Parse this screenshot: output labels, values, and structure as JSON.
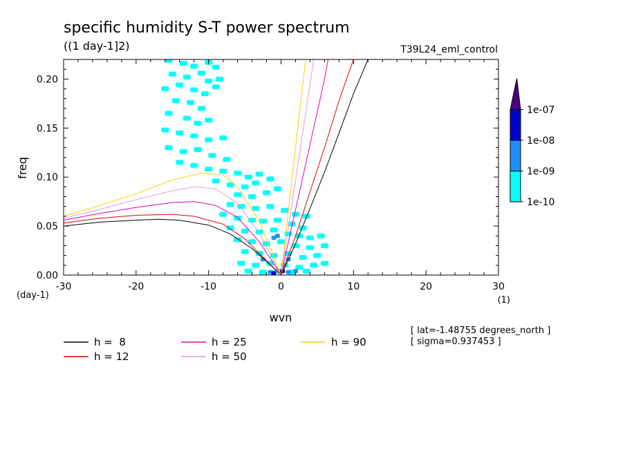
{
  "chart_data": {
    "type": "heatmap",
    "title": "specific humidity S-T power spectrum",
    "subtitle": "((1 day-1]2)",
    "experiment": "T39L24_eml_control",
    "xlabel": "wvn",
    "ylabel": "freq",
    "x_unit_label": "(1)",
    "y_unit_label": "(day-1)",
    "xlim": [
      -30,
      30
    ],
    "ylim": [
      0,
      0.22
    ],
    "xticks": [
      -30,
      -20,
      -10,
      0,
      10,
      20,
      30
    ],
    "xtick_labels": [
      "-30",
      "-20",
      "-10",
      "0",
      "10",
      "20",
      "30"
    ],
    "yticks": [
      0,
      0.05,
      0.1,
      0.15,
      0.2
    ],
    "ytick_labels": [
      "0.00",
      "0.05",
      "0.10",
      "0.15",
      "0.20"
    ],
    "colorbar": {
      "levels": [
        "1e-10",
        "1e-09",
        "1e-08",
        "1e-07"
      ],
      "colors": [
        "#00ffff",
        "#1e90ff",
        "#0000cd",
        "#4b0082"
      ],
      "extend": "max"
    },
    "info_lines": [
      "[ lat=-1.48755 degrees_north ]",
      "[ sigma=0.937453 ]"
    ],
    "series": [
      {
        "name": "h =  8",
        "color": "#000000",
        "westward": [
          [
            -30,
            0.05
          ],
          [
            -25,
            0.054
          ],
          [
            -20,
            0.056
          ],
          [
            -17,
            0.057
          ],
          [
            -14,
            0.056
          ],
          [
            -10,
            0.051
          ],
          [
            -7,
            0.042
          ],
          [
            -4,
            0.027
          ],
          [
            -2,
            0.014
          ],
          [
            0,
            0
          ]
        ],
        "eastward": [
          [
            0,
            0
          ],
          [
            2,
            0.032
          ],
          [
            4,
            0.068
          ],
          [
            6,
            0.105
          ],
          [
            8,
            0.145
          ],
          [
            10,
            0.185
          ],
          [
            12,
            0.22
          ]
        ]
      },
      {
        "name": "h = 12",
        "color": "#dd0000",
        "westward": [
          [
            -30,
            0.053
          ],
          [
            -25,
            0.058
          ],
          [
            -20,
            0.061
          ],
          [
            -15,
            0.062
          ],
          [
            -12,
            0.06
          ],
          [
            -8,
            0.052
          ],
          [
            -5,
            0.037
          ],
          [
            -3,
            0.022
          ],
          [
            0,
            0
          ]
        ],
        "eastward": [
          [
            0,
            0
          ],
          [
            2,
            0.04
          ],
          [
            4,
            0.085
          ],
          [
            6,
            0.13
          ],
          [
            8,
            0.178
          ],
          [
            10,
            0.22
          ]
        ]
      },
      {
        "name": "h = 25",
        "color": "#dd00aa",
        "westward": [
          [
            -30,
            0.056
          ],
          [
            -25,
            0.063
          ],
          [
            -20,
            0.069
          ],
          [
            -15,
            0.074
          ],
          [
            -12,
            0.075
          ],
          [
            -9,
            0.071
          ],
          [
            -6,
            0.059
          ],
          [
            -3,
            0.034
          ],
          [
            0,
            0
          ]
        ],
        "eastward": [
          [
            0,
            0
          ],
          [
            1.5,
            0.05
          ],
          [
            3,
            0.1
          ],
          [
            4.5,
            0.15
          ],
          [
            6,
            0.2
          ],
          [
            6.5,
            0.22
          ]
        ]
      },
      {
        "name": "h = 50",
        "color": "#dd99dd",
        "westward": [
          [
            -30,
            0.058
          ],
          [
            -25,
            0.067
          ],
          [
            -20,
            0.077
          ],
          [
            -15,
            0.086
          ],
          [
            -12,
            0.09
          ],
          [
            -9,
            0.088
          ],
          [
            -6,
            0.073
          ],
          [
            -3,
            0.043
          ],
          [
            0,
            0
          ]
        ],
        "eastward": [
          [
            0,
            0
          ],
          [
            1,
            0.048
          ],
          [
            2,
            0.097
          ],
          [
            3,
            0.146
          ],
          [
            4,
            0.195
          ],
          [
            4.5,
            0.22
          ]
        ]
      },
      {
        "name": "h = 90",
        "color": "#ffcc00",
        "westward": [
          [
            -30,
            0.06
          ],
          [
            -25,
            0.071
          ],
          [
            -20,
            0.083
          ],
          [
            -15,
            0.097
          ],
          [
            -11,
            0.104
          ],
          [
            -8,
            0.102
          ],
          [
            -6,
            0.09
          ],
          [
            -3,
            0.055
          ],
          [
            0,
            0
          ]
        ],
        "eastward": [
          [
            0,
            0
          ],
          [
            1,
            0.065
          ],
          [
            2,
            0.13
          ],
          [
            3,
            0.195
          ],
          [
            3.4,
            0.22
          ]
        ]
      }
    ],
    "cells": [
      [
        -15.5,
        0.219,
        1
      ],
      [
        -13.5,
        0.216,
        1
      ],
      [
        -12,
        0.213,
        1
      ],
      [
        -10,
        0.217,
        1
      ],
      [
        -9,
        0.212,
        1
      ],
      [
        -15,
        0.205,
        1
      ],
      [
        -13,
        0.202,
        1
      ],
      [
        -11,
        0.206,
        1
      ],
      [
        -10,
        0.198,
        1
      ],
      [
        -8.5,
        0.2,
        1
      ],
      [
        -16,
        0.19,
        1
      ],
      [
        -14,
        0.194,
        1
      ],
      [
        -12,
        0.189,
        1
      ],
      [
        -10.5,
        0.185,
        1
      ],
      [
        -9,
        0.192,
        1
      ],
      [
        -14.5,
        0.178,
        1
      ],
      [
        -12.5,
        0.176,
        1
      ],
      [
        -11,
        0.17,
        1
      ],
      [
        -15.5,
        0.165,
        1
      ],
      [
        -13,
        0.16,
        1
      ],
      [
        -11.5,
        0.155,
        1
      ],
      [
        -10,
        0.158,
        1
      ],
      [
        -16,
        0.148,
        1
      ],
      [
        -14,
        0.145,
        1
      ],
      [
        -12,
        0.142,
        1
      ],
      [
        -10,
        0.138,
        1
      ],
      [
        -8,
        0.14,
        1
      ],
      [
        -15.5,
        0.13,
        1
      ],
      [
        -13.5,
        0.126,
        1
      ],
      [
        -11.5,
        0.128,
        1
      ],
      [
        -9.5,
        0.122,
        1
      ],
      [
        -7.5,
        0.118,
        1
      ],
      [
        -14,
        0.115,
        1
      ],
      [
        -12,
        0.112,
        1
      ],
      [
        -10,
        0.108,
        1
      ],
      [
        -8,
        0.106,
        1
      ],
      [
        -6,
        0.104,
        1
      ],
      [
        -4.5,
        0.1,
        1
      ],
      [
        -3,
        0.103,
        1
      ],
      [
        -9,
        0.096,
        1
      ],
      [
        -7,
        0.092,
        1
      ],
      [
        -5,
        0.09,
        1
      ],
      [
        -3.5,
        0.094,
        1
      ],
      [
        -1.5,
        0.098,
        1
      ],
      [
        -6,
        0.082,
        1
      ],
      [
        -4,
        0.08,
        1
      ],
      [
        -2,
        0.084,
        1
      ],
      [
        -0.5,
        0.088,
        1
      ],
      [
        -7,
        0.072,
        1
      ],
      [
        -5.5,
        0.07,
        1
      ],
      [
        -3.5,
        0.068,
        1
      ],
      [
        -1.5,
        0.07,
        1
      ],
      [
        0.5,
        0.066,
        1
      ],
      [
        2,
        0.062,
        1
      ],
      [
        3.5,
        0.06,
        1
      ],
      [
        -8,
        0.062,
        1
      ],
      [
        -6,
        0.058,
        1
      ],
      [
        -4,
        0.056,
        1
      ],
      [
        -2.5,
        0.055,
        1
      ],
      [
        -0.5,
        0.056,
        1
      ],
      [
        1.5,
        0.052,
        1
      ],
      [
        3,
        0.048,
        1
      ],
      [
        -7,
        0.048,
        1
      ],
      [
        -5,
        0.045,
        1
      ],
      [
        -3,
        0.044,
        1
      ],
      [
        -1,
        0.046,
        1
      ],
      [
        1,
        0.042,
        1
      ],
      [
        2.5,
        0.04,
        1
      ],
      [
        4,
        0.038,
        1
      ],
      [
        5.5,
        0.04,
        1
      ],
      [
        -6,
        0.036,
        1
      ],
      [
        -4,
        0.034,
        1
      ],
      [
        -2,
        0.032,
        1
      ],
      [
        0,
        0.034,
        1
      ],
      [
        2,
        0.03,
        1
      ],
      [
        4,
        0.028,
        1
      ],
      [
        6,
        0.03,
        1
      ],
      [
        -5,
        0.024,
        1
      ],
      [
        -3,
        0.022,
        1
      ],
      [
        -1,
        0.02,
        1
      ],
      [
        1,
        0.022,
        1
      ],
      [
        3,
        0.018,
        1
      ],
      [
        5,
        0.02,
        1
      ],
      [
        -5.5,
        0.012,
        1
      ],
      [
        -3.5,
        0.01,
        1
      ],
      [
        -1.5,
        0.012,
        1
      ],
      [
        0.5,
        0.01,
        1
      ],
      [
        2.5,
        0.008,
        1
      ],
      [
        4.5,
        0.01,
        1
      ],
      [
        6,
        0.012,
        1
      ],
      [
        -4.5,
        0.004,
        1
      ],
      [
        -2.5,
        0.003,
        1
      ],
      [
        -0.5,
        0.004,
        1
      ],
      [
        1.5,
        0.003,
        1
      ],
      [
        3.5,
        0.004,
        1
      ],
      [
        -1,
        0.038,
        2
      ],
      [
        -0.5,
        0.04,
        2
      ],
      [
        -2.5,
        0.016,
        2
      ],
      [
        1,
        0.016,
        2
      ],
      [
        -1.5,
        0.003,
        2
      ],
      [
        1,
        0.003,
        2
      ],
      [
        2,
        0.004,
        2
      ],
      [
        0.2,
        0.004,
        3
      ],
      [
        -1,
        0.002,
        3
      ]
    ]
  }
}
